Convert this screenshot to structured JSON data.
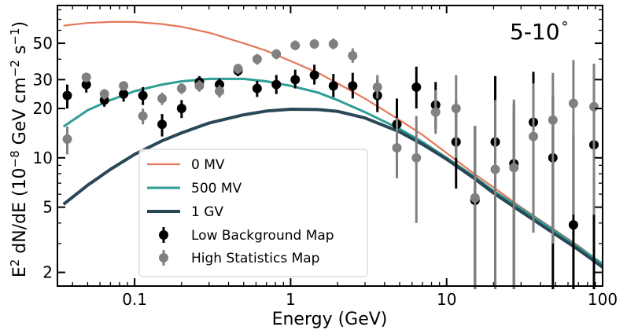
{
  "chart_data": {
    "type": "line",
    "title": "",
    "annotation": "5-10$^\\circ$",
    "annotation_text": "5-10",
    "annotation_suffix": "°",
    "xlabel": "Energy (GeV)",
    "ylabel": "E² dN/dE (10⁻⁸ GeV cm⁻² s⁻¹)",
    "ylabel_parts": {
      "a": "E",
      "sup1": "2",
      "b": " dN/dE (10",
      "sup2": "−8",
      "c": " GeV cm",
      "sup3": "−2",
      "d": " s",
      "sup4": "−1",
      "e": ")"
    },
    "xscale": "log",
    "yscale": "log",
    "xlim": [
      0.032,
      100
    ],
    "ylim": [
      1.65,
      85
    ],
    "x_ticks": [
      {
        "v": 0.1,
        "label": "0.1"
      },
      {
        "v": 1,
        "label": "1"
      },
      {
        "v": 10,
        "label": "10"
      },
      {
        "v": 100,
        "label": "100"
      }
    ],
    "y_ticks": [
      {
        "v": 2,
        "label": "2"
      },
      {
        "v": 5,
        "label": "5"
      },
      {
        "v": 10,
        "label": "10"
      },
      {
        "v": 20,
        "label": "20"
      },
      {
        "v": 30,
        "label": "30"
      },
      {
        "v": 50,
        "label": "50"
      }
    ],
    "legend_position": "lower-left",
    "series": [
      {
        "name": "0 MV",
        "kind": "line",
        "color": "#E4775A",
        "x": [
          0.035,
          0.05,
          0.07,
          0.1,
          0.15,
          0.2,
          0.3,
          0.5,
          0.7,
          1,
          1.5,
          2,
          3,
          5,
          7,
          10,
          15,
          20,
          30,
          50,
          70,
          100
        ],
        "y": [
          64,
          66.5,
          67.5,
          67.5,
          65.5,
          63,
          58,
          50,
          45,
          39,
          33,
          28.5,
          23,
          17,
          13.8,
          10.7,
          8,
          6.6,
          5,
          3.6,
          2.9,
          2.25
        ]
      },
      {
        "name": "500 MV",
        "kind": "line",
        "color": "#2E9E95",
        "x": [
          0.035,
          0.05,
          0.07,
          0.1,
          0.15,
          0.2,
          0.3,
          0.5,
          0.7,
          1,
          1.5,
          2,
          3,
          5,
          7,
          10,
          15,
          20,
          30,
          50,
          70,
          100
        ],
        "y": [
          15.5,
          19.5,
          22.5,
          25.5,
          28,
          29.3,
          30.3,
          30.3,
          29.3,
          27.5,
          25,
          22.5,
          19,
          15,
          12.5,
          10,
          7.7,
          6.3,
          4.9,
          3.55,
          2.85,
          2.25
        ]
      },
      {
        "name": "1 GV",
        "kind": "line",
        "color": "#2A4756",
        "x": [
          0.035,
          0.05,
          0.07,
          0.1,
          0.15,
          0.2,
          0.3,
          0.5,
          0.7,
          1,
          1.5,
          2,
          3,
          5,
          7,
          10,
          15,
          20,
          30,
          50,
          70,
          100
        ],
        "y": [
          5.2,
          6.8,
          8.5,
          10.5,
          12.7,
          14.2,
          16.3,
          18.3,
          19.3,
          19.8,
          19.7,
          19.2,
          17.5,
          14.4,
          12.1,
          9.8,
          7.5,
          6.1,
          4.7,
          3.4,
          2.75,
          2.15
        ]
      },
      {
        "name": "Low Background Map",
        "kind": "errorbar",
        "color": "#000000",
        "x": [
          0.037,
          0.049,
          0.064,
          0.085,
          0.113,
          0.15,
          0.2,
          0.26,
          0.35,
          0.46,
          0.61,
          0.81,
          1.07,
          1.42,
          1.88,
          2.5,
          3.6,
          4.8,
          6.4,
          8.5,
          11.5,
          15.2,
          20.5,
          27,
          36,
          48,
          65,
          88
        ],
        "y": [
          24,
          28,
          22.5,
          24.5,
          24,
          16,
          20,
          29,
          28,
          34,
          26.5,
          28,
          30,
          32,
          27.5,
          27.5,
          24,
          16,
          27,
          21,
          12.5,
          5.5,
          12.5,
          9.2,
          16.5,
          10,
          3.9,
          12
        ],
        "err_lo": [
          4,
          3,
          2,
          2.5,
          3,
          2.5,
          2.5,
          2.5,
          2.5,
          2.5,
          3,
          3.5,
          3.5,
          4,
          4,
          4.5,
          5,
          5,
          7,
          6,
          6,
          5.3,
          11.8,
          9,
          13,
          9.8,
          3.8,
          11.8
        ],
        "err_hi": [
          4,
          3,
          2,
          2.5,
          3,
          2.5,
          2.5,
          2.5,
          2.5,
          2.5,
          3,
          4,
          4.5,
          5,
          5,
          5.5,
          6,
          7,
          9,
          8,
          10,
          10,
          19,
          12,
          17,
          14,
          10,
          20
        ]
      },
      {
        "name": "High Statistics Map",
        "kind": "errorbar",
        "color": "#808080",
        "x": [
          0.037,
          0.049,
          0.064,
          0.085,
          0.113,
          0.15,
          0.2,
          0.26,
          0.35,
          0.46,
          0.61,
          0.81,
          1.07,
          1.42,
          1.88,
          2.5,
          3.6,
          4.8,
          6.4,
          8.5,
          11.5,
          15.2,
          20.5,
          27,
          36,
          48,
          65,
          88
        ],
        "y": [
          13,
          31,
          24.5,
          27.5,
          18,
          23,
          26.5,
          27.5,
          25.5,
          35,
          40,
          43,
          48.5,
          49.5,
          49.5,
          42,
          27,
          11.5,
          10,
          19,
          20,
          5.7,
          8.5,
          8.7,
          13.5,
          17,
          21.5,
          20.5
        ],
        "err_lo": [
          2.5,
          2,
          1.8,
          1.8,
          2,
          2,
          2,
          2.2,
          2.2,
          2.5,
          3,
          3,
          3,
          3,
          3.5,
          4,
          4,
          4,
          6,
          5,
          10,
          5.6,
          8.4,
          8.6,
          10,
          14,
          17,
          16
        ],
        "err_hi": [
          2.5,
          2,
          1.8,
          1.8,
          2,
          2,
          2,
          2.2,
          2.2,
          2.5,
          3,
          3,
          3.5,
          3.5,
          4,
          4.5,
          5,
          6,
          8,
          7,
          12,
          10,
          14,
          14,
          15,
          16,
          18,
          17
        ]
      }
    ]
  }
}
